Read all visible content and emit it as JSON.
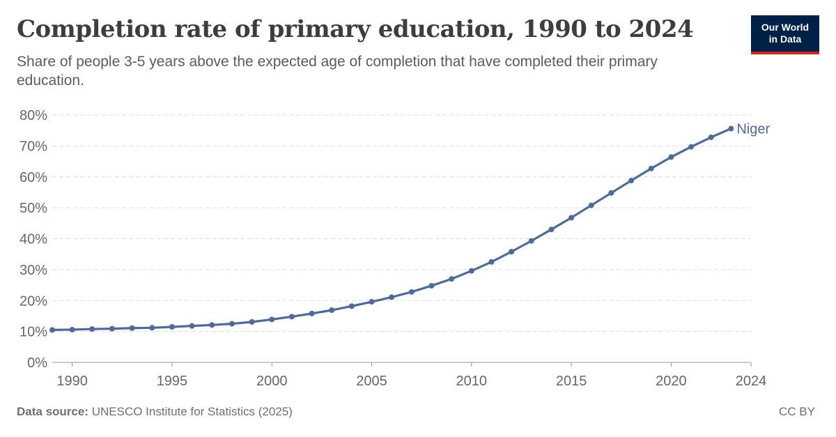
{
  "header": {
    "title": "Completion rate of primary education, 1990 to 2024",
    "subtitle": "Share of people 3-5 years above the expected age of completion that have completed their primary education."
  },
  "logo": {
    "line1": "Our World",
    "line2": "in Data",
    "bg_color": "#002147",
    "accent_color": "#ce261e"
  },
  "footer": {
    "source_label": "Data source:",
    "source_text": " UNESCO Institute for Statistics (2025)",
    "license": "CC BY"
  },
  "colors": {
    "series": "#4c6a9c",
    "grid": "#dddddd",
    "axis_text": "#666666"
  },
  "chart_data": {
    "type": "line",
    "title": "Completion rate of primary education, 1990 to 2024",
    "xlabel": "",
    "ylabel": "",
    "xlim": [
      1989,
      2024
    ],
    "ylim": [
      0,
      80
    ],
    "y_ticks": [
      0,
      10,
      20,
      30,
      40,
      50,
      60,
      70,
      80
    ],
    "y_tick_labels": [
      "0%",
      "10%",
      "20%",
      "30%",
      "40%",
      "50%",
      "60%",
      "70%",
      "80%"
    ],
    "x_ticks": [
      1990,
      1995,
      2000,
      2005,
      2010,
      2015,
      2020,
      2024
    ],
    "x_tick_labels": [
      "1990",
      "1995",
      "2000",
      "2005",
      "2010",
      "2015",
      "2020",
      "2024"
    ],
    "grid": "horizontal dashed",
    "series": [
      {
        "name": "Niger",
        "color": "#4c6a9c",
        "x": [
          1989,
          1990,
          1991,
          1992,
          1993,
          1994,
          1995,
          1996,
          1997,
          1998,
          1999,
          2000,
          2001,
          2002,
          2003,
          2004,
          2005,
          2006,
          2007,
          2008,
          2009,
          2010,
          2011,
          2012,
          2013,
          2014,
          2015,
          2016,
          2017,
          2018,
          2019,
          2020,
          2021,
          2022,
          2023,
          2024
        ],
        "y": [
          10.5,
          10.6,
          10.8,
          10.9,
          11.1,
          11.2,
          11.5,
          11.8,
          12.1,
          12.5,
          13.1,
          13.9,
          14.8,
          15.8,
          16.9,
          18.2,
          19.6,
          21.1,
          22.8,
          24.8,
          27.0,
          29.6,
          32.5,
          35.8,
          39.3,
          43.0,
          46.8,
          50.8,
          54.8,
          58.8,
          62.7,
          66.4,
          69.7,
          72.8,
          75.6,
          null
        ]
      }
    ]
  }
}
